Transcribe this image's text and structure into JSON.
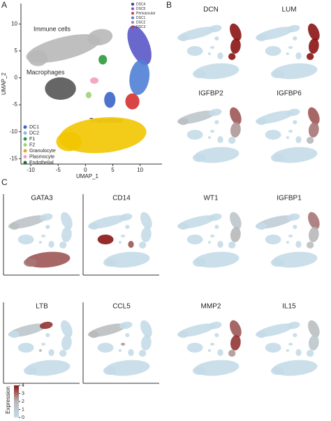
{
  "panel_labels": [
    "A",
    "B",
    "C"
  ],
  "umap": {
    "xlabel": "UMAP_1",
    "ylabel": "UMAP_2",
    "xlim": [
      -11.8,
      14
    ],
    "ylim": [
      -16,
      13.8
    ],
    "xticks": [
      -10,
      -5,
      0,
      5,
      10
    ],
    "yticks": [
      -15,
      -10,
      -5,
      0,
      5,
      10
    ],
    "annotations": [
      "Immune cells",
      "Macrophages",
      "Trophoblast"
    ],
    "legend_left": [
      {
        "name": "DC1",
        "color": "#3a64c8"
      },
      {
        "name": "DC2",
        "color": "#8fb8e0"
      },
      {
        "name": "F1",
        "color": "#2f9a3a"
      },
      {
        "name": "F2",
        "color": "#9fd07a"
      },
      {
        "name": "Granulocyte",
        "color": "#f0a030"
      },
      {
        "name": "Plasmocyte",
        "color": "#f2a0b8"
      },
      {
        "name": "Endothelial",
        "color": "#1e6b2a"
      }
    ],
    "legend_right": [
      {
        "name": "DSC4",
        "color": "#2c3e8c"
      },
      {
        "name": "DSC5",
        "color": "#6a5acd"
      },
      {
        "name": "Perivascular",
        "color": "#c04a4a"
      },
      {
        "name": "DSC1",
        "color": "#4f7fd6"
      },
      {
        "name": "DSC2",
        "color": "#9b7fc8"
      },
      {
        "name": "DSC3",
        "color": "#d63030"
      }
    ]
  },
  "genes": [
    "DCN",
    "LUM",
    "IGFBP2",
    "IGFBP6",
    "GATA3",
    "CD14",
    "WT1",
    "IGFBP1",
    "LTB",
    "CCL5",
    "MMP2",
    "IL15"
  ],
  "colorbar": {
    "title": "Expression",
    "lim": [
      0,
      4
    ],
    "ticks": [
      0,
      1,
      2,
      3,
      4
    ],
    "low_color": "#c4dbe8",
    "mid_color": "#b8b8b8",
    "high_color": "#8b1414"
  }
}
